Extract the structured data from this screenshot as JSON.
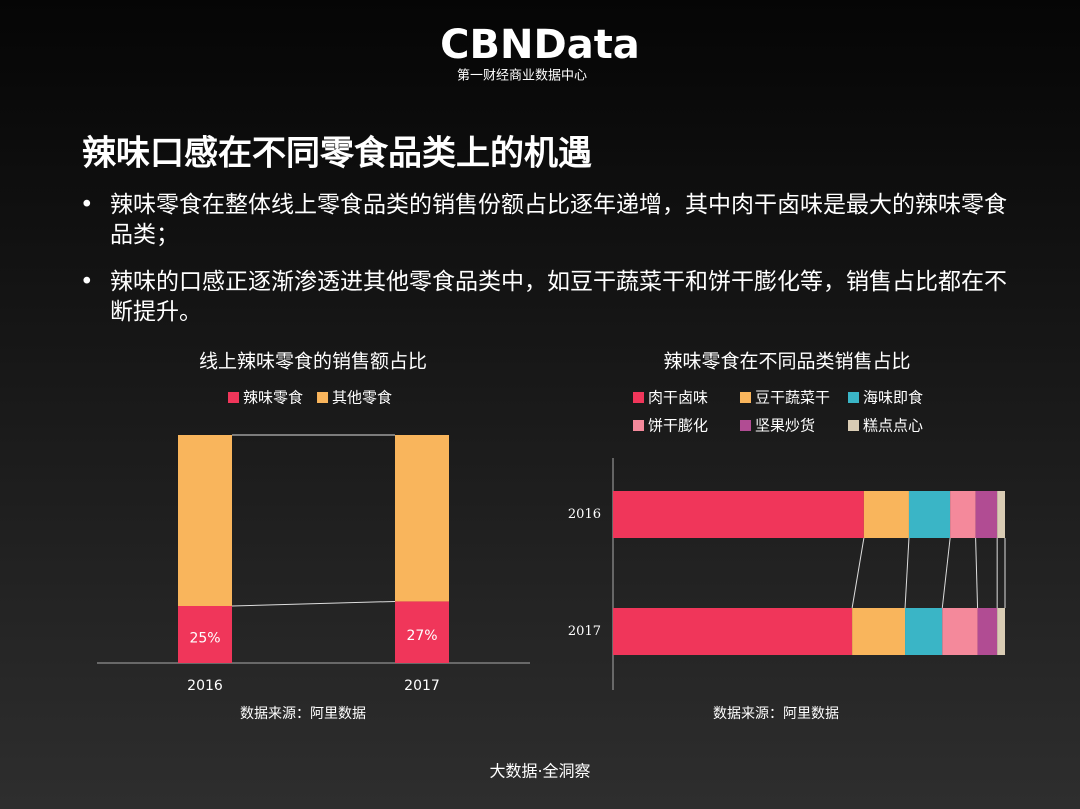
{
  "header": {
    "logo": "CBNData",
    "subtitle": "第一财经商业数据中心"
  },
  "title": "辣味口感在不同零食品类上的机遇",
  "bullets": [
    "辣味零食在整体线上零食品类的销售份额占比逐年递增，其中肉干卤味是最大的辣味零食品类；",
    "辣味的口感正逐渐渗透进其他零食品类中，如豆干蔬菜干和饼干膨化等，销售占比都在不断提升。"
  ],
  "footer": "大数据·全洞察",
  "chart_data": [
    {
      "type": "stacked_bar",
      "title": "线上辣味零食的销售额占比",
      "source": "数据来源：阿里数据",
      "categories": [
        "2016",
        "2017"
      ],
      "ylim": [
        0,
        100
      ],
      "series": [
        {
          "name": "辣味零食",
          "color": "#f0365a",
          "values": [
            25,
            27
          ],
          "value_labels": [
            "25%",
            "27%"
          ]
        },
        {
          "name": "其他零食",
          "color": "#f9b55c",
          "values": [
            75,
            73
          ]
        }
      ]
    },
    {
      "type": "stacked_barh",
      "title": "辣味零食在不同品类销售占比",
      "source": "数据来源：阿里数据",
      "categories": [
        "2016",
        "2017"
      ],
      "xlim": [
        0,
        100
      ],
      "series": [
        {
          "name": "肉干卤味",
          "color": "#f0365a",
          "values": [
            64,
            61
          ]
        },
        {
          "name": "豆干蔬菜干",
          "color": "#f9b55c",
          "values": [
            11.5,
            13.5
          ]
        },
        {
          "name": "海味即食",
          "color": "#3ab5c6",
          "values": [
            10.5,
            9.5
          ]
        },
        {
          "name": "饼干膨化",
          "color": "#f4899b",
          "values": [
            6.5,
            9
          ]
        },
        {
          "name": "坚果炒货",
          "color": "#b14c93",
          "values": [
            5.5,
            5
          ]
        },
        {
          "name": "糕点点心",
          "color": "#d9ccb4",
          "values": [
            2,
            2
          ]
        }
      ]
    }
  ]
}
